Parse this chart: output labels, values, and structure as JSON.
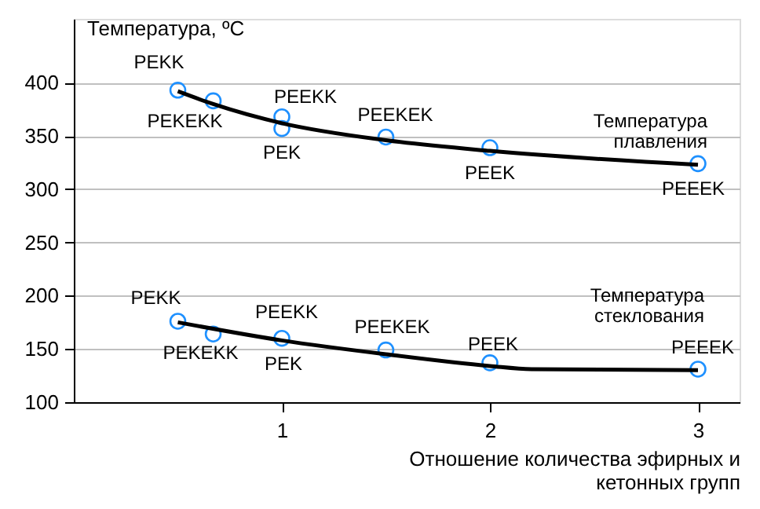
{
  "chart_data": {
    "type": "scatter",
    "ylabel": "Температура, ºC",
    "xlabel": "Отношение количества эфирных и кетонных групп",
    "xlim": [
      0,
      3.2
    ],
    "xticks": [
      1,
      2,
      3
    ],
    "ylim": [
      100,
      460
    ],
    "yticks": [
      100,
      150,
      200,
      250,
      300,
      350,
      400
    ],
    "grid": "y",
    "series": [
      {
        "name": "Температура плавления",
        "marker": "circle",
        "color": "#1e90ff",
        "x": [
          0.5,
          0.67,
          1,
          1,
          1.5,
          2,
          3
        ],
        "values": [
          393,
          383,
          368,
          357,
          349,
          339,
          324
        ]
      },
      {
        "name": "Температура стеклования",
        "marker": "circle",
        "color": "#1e90ff",
        "x": [
          0.5,
          0.67,
          1,
          1.5,
          2,
          3
        ],
        "values": [
          176,
          164,
          160,
          149,
          137,
          131
        ]
      },
      {
        "type": "line",
        "marker": "none",
        "color": "#000000",
        "line_style": "solid",
        "x": [
          0.5,
          0.67,
          1,
          1.5,
          2,
          3
        ],
        "values": [
          392,
          380,
          362,
          346,
          336,
          323
        ]
      },
      {
        "type": "line",
        "marker": "none",
        "color": "#000000",
        "line_style": "solid",
        "x": [
          0.5,
          1,
          1.5,
          2,
          2.2,
          3
        ],
        "values": [
          175,
          158,
          145,
          134,
          131,
          130
        ]
      }
    ],
    "annotations": [
      {
        "text": "PEKK",
        "x": 0.5,
        "y": 393
      },
      {
        "text": "PEKEKK",
        "x": 0.67,
        "y": 383
      },
      {
        "text": "PEEKK",
        "x": 1,
        "y": 368
      },
      {
        "text": "PEK",
        "x": 1,
        "y": 357
      },
      {
        "text": "PEEKEK",
        "x": 1.5,
        "y": 349
      },
      {
        "text": "PEEK",
        "x": 2,
        "y": 339
      },
      {
        "text": "PEEEK",
        "x": 3,
        "y": 324
      },
      {
        "text": "PEKK",
        "x": 0.5,
        "y": 176
      },
      {
        "text": "PEKEKK",
        "x": 0.67,
        "y": 164
      },
      {
        "text": "PEEKK",
        "x": 1,
        "y": 160
      },
      {
        "text": "PEK",
        "x": 1,
        "y": 160
      },
      {
        "text": "PEEKEK",
        "x": 1.5,
        "y": 149
      },
      {
        "text": "PEEK",
        "x": 2,
        "y": 137
      },
      {
        "text": "PEEEK",
        "x": 3,
        "y": 131
      }
    ]
  }
}
